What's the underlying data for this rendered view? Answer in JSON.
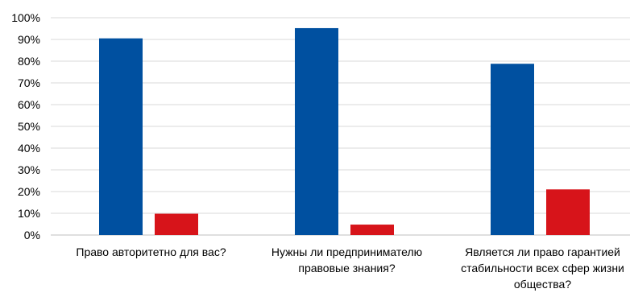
{
  "chart_data": {
    "type": "bar",
    "title": "",
    "xlabel": "",
    "ylabel": "",
    "ylim": [
      0,
      100
    ],
    "yticks": [
      "0%",
      "10%",
      "20%",
      "30%",
      "40%",
      "50%",
      "60%",
      "70%",
      "80%",
      "90%",
      "100%"
    ],
    "grid": true,
    "legend": "none",
    "categories": [
      [
        "Право авторитетно для вас?"
      ],
      [
        "Нужны ли предпринимателю",
        "правовые знания?"
      ],
      [
        "Является ли право гарантией",
        "стабильности всех сфер жизни",
        "общества?"
      ]
    ],
    "series": [
      {
        "color": "#0050a0",
        "values": [
          90.5,
          95.2,
          78.8
        ]
      },
      {
        "color": "#d7141a",
        "values": [
          9.8,
          4.8,
          21.0
        ]
      }
    ]
  }
}
